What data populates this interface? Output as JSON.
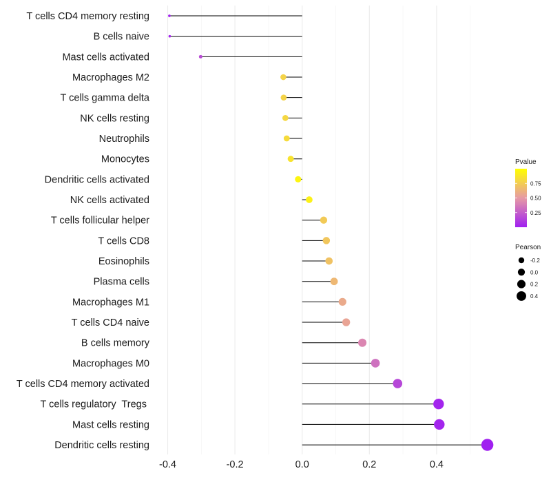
{
  "chart_data": {
    "type": "lollipop",
    "title": "",
    "xlabel": "",
    "ylabel": "",
    "xlim": [
      -0.41,
      0.56
    ],
    "x_ticks": [
      -0.4,
      -0.2,
      0.0,
      0.2,
      0.4
    ],
    "x_tick_labels": [
      "-0.4",
      "-0.2",
      "0.0",
      "0.2",
      "0.4"
    ],
    "grid": true,
    "categories": [
      "T cells CD4 memory resting",
      "B cells naive",
      "Mast cells activated",
      "Macrophages M2",
      "T cells gamma delta",
      "NK cells resting",
      "Neutrophils",
      "Monocytes",
      "Dendritic cells activated",
      "NK cells activated",
      "T cells follicular helper",
      "T cells CD8",
      "Eosinophils",
      "Plasma cells",
      "Macrophages M1",
      "T cells CD4 naive",
      "B cells memory",
      "Macrophages M0",
      "T cells CD4 memory activated",
      "T cells regulatory  Tregs ",
      "Mast cells resting",
      "Dendritic cells resting"
    ],
    "pearson": [
      -0.395,
      -0.394,
      -0.302,
      -0.056,
      -0.055,
      -0.05,
      -0.046,
      -0.034,
      -0.012,
      0.021,
      0.064,
      0.072,
      0.08,
      0.095,
      0.12,
      0.131,
      0.179,
      0.218,
      0.284,
      0.406,
      0.408,
      0.551
    ],
    "pvalue": [
      0.02,
      0.03,
      0.18,
      0.78,
      0.78,
      0.8,
      0.82,
      0.86,
      0.95,
      0.93,
      0.74,
      0.72,
      0.7,
      0.65,
      0.58,
      0.55,
      0.42,
      0.33,
      0.16,
      0.02,
      0.02,
      0.001
    ],
    "baseline": 0,
    "legend": {
      "color": {
        "title": "Pvalue",
        "ticks": [
          0.25,
          0.5,
          0.75
        ],
        "tick_labels": [
          "0.25",
          "0.50",
          "0.75"
        ],
        "range": [
          0,
          1
        ],
        "low_color": "#a020f0",
        "mid_color": "#e69aa5",
        "high_color": "#ffff00"
      },
      "size": {
        "title": "Pearson",
        "values": [
          -0.2,
          0.0,
          0.2,
          0.4
        ],
        "labels": [
          "-0.2",
          "0.0",
          "0.2",
          "0.4"
        ]
      },
      "position": "right"
    }
  }
}
